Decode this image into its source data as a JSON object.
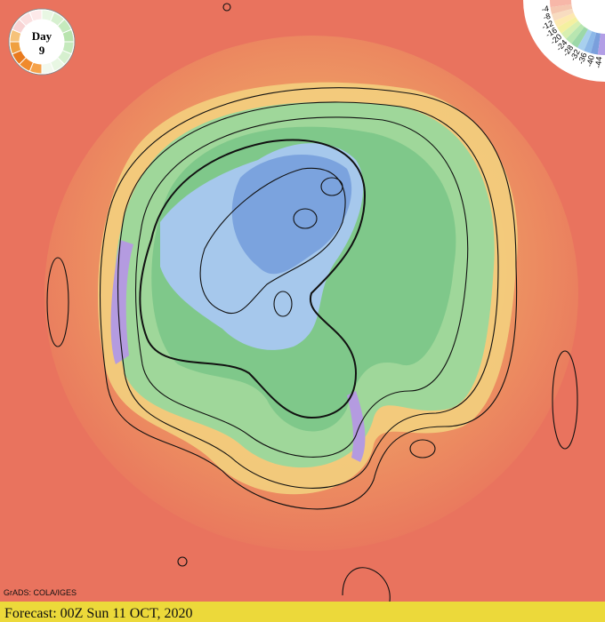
{
  "badge": {
    "label": "Day",
    "day": "9"
  },
  "scale": {
    "labels": [
      "-4",
      "-8",
      "-12",
      "-16",
      "-20",
      "-24",
      "-28",
      "-32",
      "-36",
      "-40",
      "-44"
    ]
  },
  "credit": "GrADS: COLA/IGES",
  "footer": "Forecast: 00Z Sun 11 OCT, 2020"
}
